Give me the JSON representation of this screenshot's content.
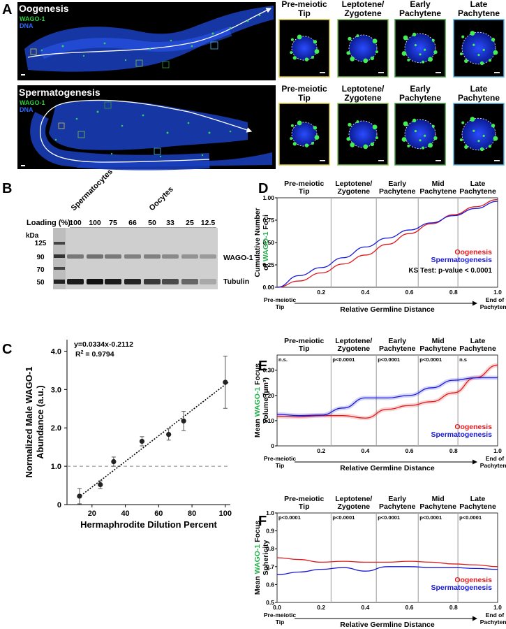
{
  "panel_A": {
    "letter": "A",
    "oogenesis_title": "Oogenesis",
    "spermatogenesis_title": "Spermatogenesis",
    "legend_wago": "WAGO-1",
    "legend_dna": "DNA",
    "stages": [
      "Pre-meiotic\nTip",
      "Leptotene/\nZygotene",
      "Early\nPachytene",
      "Late\nPachytene"
    ],
    "frame_colors": [
      "#d8c93a",
      "#7cc24d",
      "#3c9a3a",
      "#4fb7e8"
    ],
    "colors": {
      "wago": "#2ecc40",
      "dna": "#2255ff",
      "background": "#000000"
    }
  },
  "panel_B": {
    "letter": "B",
    "group_spermatocytes": "Spermatocytes",
    "group_oocytes": "Oocytes",
    "loading_label": "Loading (%):",
    "loading_values": [
      "100",
      "100",
      "75",
      "66",
      "50",
      "33",
      "25",
      "12.5"
    ],
    "kda_label": "kDa",
    "ladder": [
      "125",
      "90",
      "70",
      "50"
    ],
    "band_wago": "WAGO-1",
    "band_tubulin": "Tubulin"
  },
  "panel_C": {
    "letter": "C",
    "equation": "y=0.0334x-0.2112",
    "r2_label": "R",
    "r2_sup": "2",
    "r2_value": " = 0.9794",
    "ylabel_1": "Normalized Male WAGO-1",
    "ylabel_2": "Abundance (a.u.)",
    "xlabel": "Hermaphrodite Dilution Percent",
    "chart_data": {
      "type": "scatter",
      "x": [
        12.5,
        25,
        33,
        50,
        66,
        75,
        100
      ],
      "y": [
        0.22,
        0.52,
        1.12,
        1.65,
        1.83,
        2.18,
        3.19
      ],
      "err": [
        0.2,
        0.1,
        0.12,
        0.12,
        0.15,
        0.25,
        0.68
      ],
      "fit": {
        "slope": 0.0334,
        "intercept": -0.2112
      },
      "reference_line": 1.0,
      "xticks": [
        "20",
        "40",
        "60",
        "80",
        "100"
      ],
      "yticks": [
        "0",
        "1.0",
        "2.0",
        "3.0",
        "4.0"
      ],
      "xlim": [
        5,
        103
      ],
      "ylim": [
        0,
        4.3
      ]
    }
  },
  "stage_labels": [
    "Pre-meiotic\nTip",
    "Leptotene/\nZygotene",
    "Early\nPachytene",
    "Mid\nPachytene",
    "Late\nPachytene"
  ],
  "x_axis_common": {
    "left": "Pre-meiotic\nTip",
    "right": "End of\nPachytene",
    "xlabel": "Relative Germline Distance"
  },
  "series_names": {
    "oogenesis": "Oogenesis",
    "spermatogenesis": "Spermatogenesis"
  },
  "series_colors": {
    "oogenesis": "#e0191d",
    "spermatogenesis": "#1818d8"
  },
  "panel_D": {
    "letter": "D",
    "ylabel_1": "Cumulative Number",
    "ylabel_2a": "of ",
    "ylabel_2b": "WAGO-1",
    "ylabel_2c": " Foci",
    "ks_text": "KS Test: p-value < 0.0001",
    "chart_data": {
      "type": "line",
      "x": [
        0,
        0.1,
        0.2,
        0.3,
        0.4,
        0.5,
        0.6,
        0.7,
        0.8,
        0.9,
        1.0
      ],
      "series": [
        {
          "name": "Oogenesis",
          "values": [
            0,
            0.07,
            0.16,
            0.26,
            0.36,
            0.48,
            0.6,
            0.71,
            0.81,
            0.9,
            0.98
          ]
        },
        {
          "name": "Spermatogenesis",
          "values": [
            0,
            0.13,
            0.22,
            0.33,
            0.45,
            0.55,
            0.64,
            0.72,
            0.8,
            0.88,
            0.96
          ]
        }
      ],
      "xticks": [
        "0.2",
        "0.4",
        "0.6",
        "0.8",
        "1.0"
      ],
      "yticks": [
        "0.00",
        "0.25",
        "0.50",
        "0.75",
        "1.00"
      ],
      "stage_boundaries": [
        0.245,
        0.45,
        0.64,
        0.82
      ],
      "xlim": [
        0,
        1
      ],
      "ylim": [
        0,
        1
      ]
    }
  },
  "panel_E": {
    "letter": "E",
    "ylabel_1a": "Mean ",
    "ylabel_1b": "WAGO-1",
    "ylabel_1c": " Focus",
    "ylabel_2": "Volume (µm³)",
    "pvalues": [
      "n.s.",
      "p<0.0001",
      "p<0.0001",
      "p<0.0001",
      "n.s"
    ],
    "chart_data": {
      "type": "line",
      "x": [
        0,
        0.1,
        0.2,
        0.3,
        0.4,
        0.5,
        0.6,
        0.7,
        0.8,
        0.9,
        1.0
      ],
      "series": [
        {
          "name": "Oogenesis",
          "values": [
            0.117,
            0.115,
            0.12,
            0.12,
            0.11,
            0.145,
            0.16,
            0.175,
            0.21,
            0.27,
            0.32
          ]
        },
        {
          "name": "Spermatogenesis",
          "values": [
            0.125,
            0.12,
            0.122,
            0.15,
            0.19,
            0.19,
            0.2,
            0.23,
            0.26,
            0.27,
            0.27
          ]
        }
      ],
      "xticks": [
        "0.2",
        "0.4",
        "0.6",
        "0.8",
        "1.0"
      ],
      "yticks": [
        "0",
        "0.10",
        "0.20",
        "0.30"
      ],
      "stage_boundaries": [
        0.245,
        0.45,
        0.64,
        0.82
      ],
      "xlim": [
        0,
        1
      ],
      "ylim": [
        0,
        0.36
      ]
    }
  },
  "panel_F": {
    "letter": "F",
    "ylabel_1a": "Mean ",
    "ylabel_1b": "WAGO-1",
    "ylabel_1c": " Focus",
    "ylabel_2": "Sphericity",
    "pvalues": [
      "p<0.0001",
      "p<0.0001",
      "p<0.0001",
      "p<0.0001",
      "p<0.0001"
    ],
    "chart_data": {
      "type": "line",
      "x": [
        0,
        0.1,
        0.2,
        0.3,
        0.4,
        0.5,
        0.6,
        0.7,
        0.8,
        0.9,
        1.0
      ],
      "series": [
        {
          "name": "Oogenesis",
          "values": [
            0.75,
            0.74,
            0.725,
            0.73,
            0.725,
            0.725,
            0.73,
            0.725,
            0.715,
            0.71,
            0.7
          ]
        },
        {
          "name": "Spermatogenesis",
          "values": [
            0.655,
            0.67,
            0.685,
            0.695,
            0.675,
            0.7,
            0.7,
            0.695,
            0.695,
            0.69,
            0.685
          ]
        }
      ],
      "xticks": [
        "0.0",
        "0.2",
        "0.4",
        "0.6",
        "0.8",
        "1.0"
      ],
      "yticks": [
        "0.5",
        "0.6",
        "0.7",
        "0.8",
        "0.9",
        "1.0"
      ],
      "stage_boundaries": [
        0.245,
        0.45,
        0.64,
        0.82
      ],
      "xlim": [
        0,
        1
      ],
      "ylim": [
        0.5,
        1.0
      ]
    }
  }
}
